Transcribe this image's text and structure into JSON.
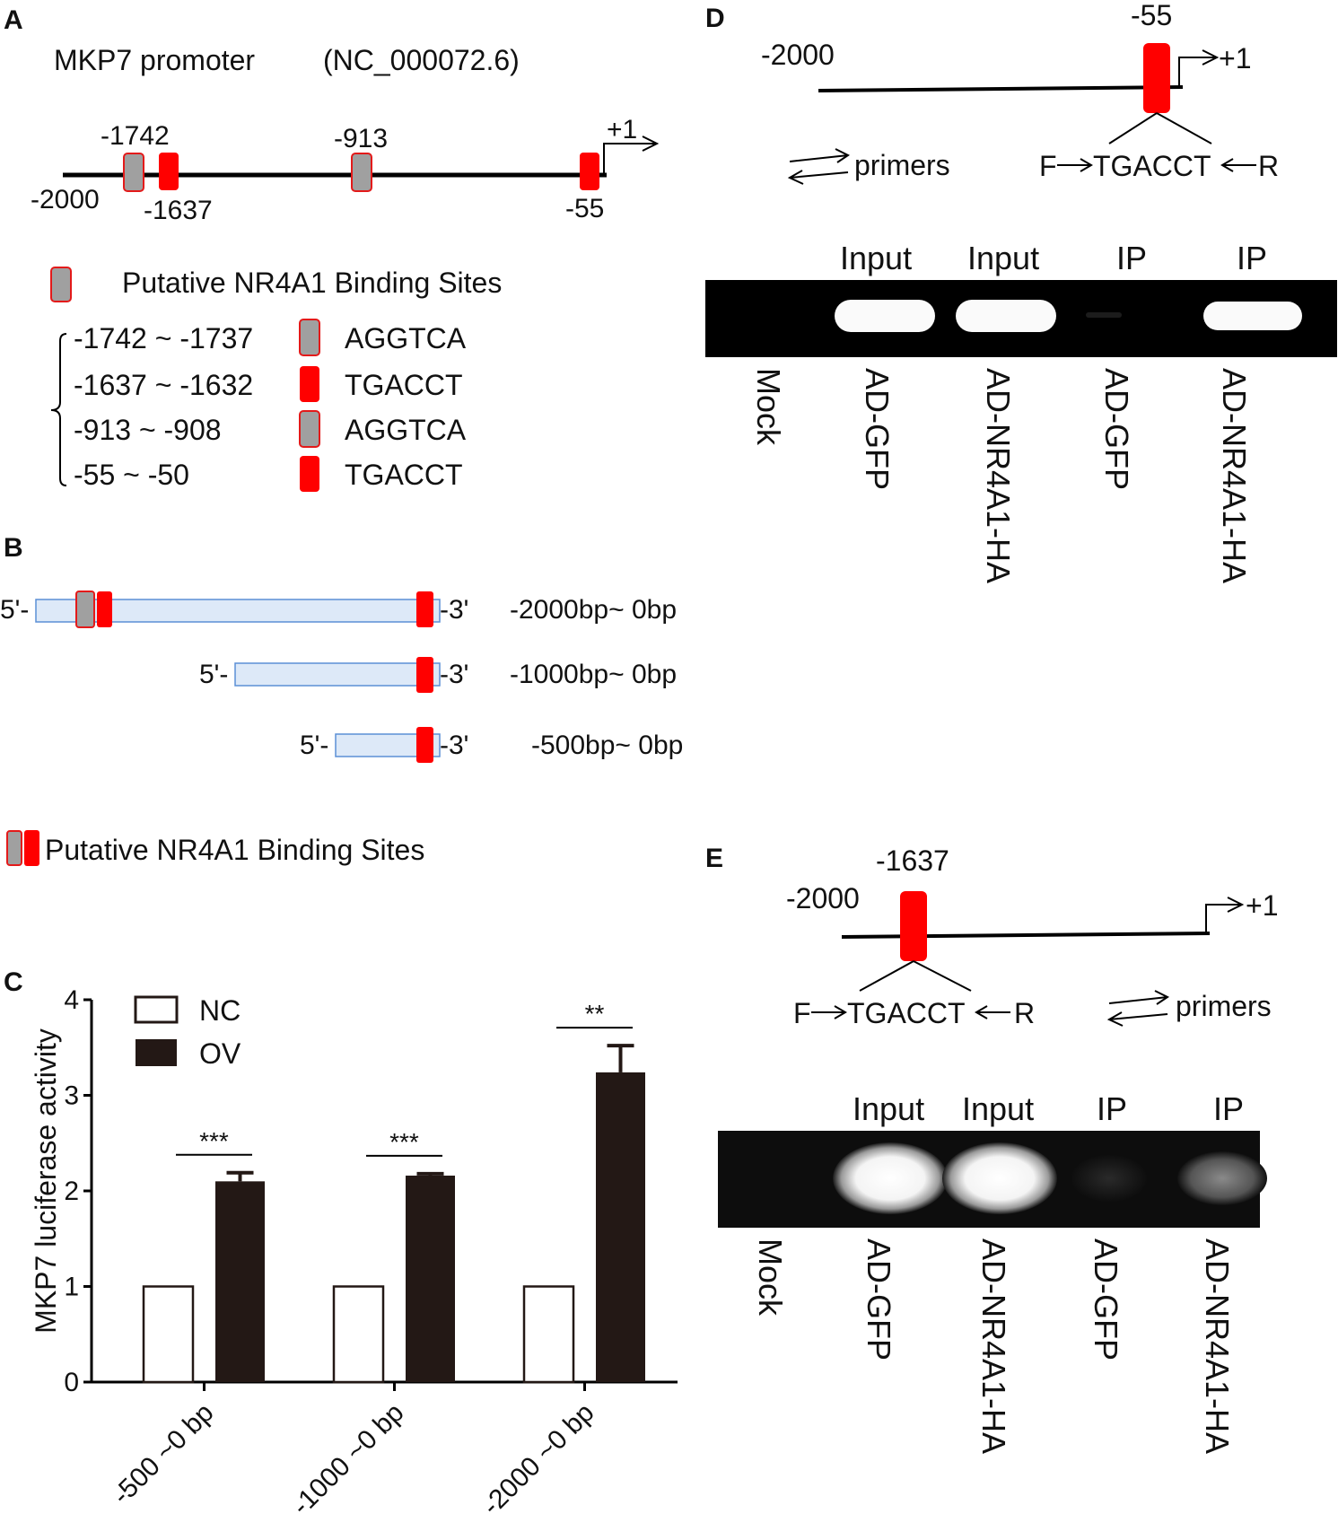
{
  "panelA": {
    "label": "A",
    "title": "MKP7 promoter",
    "accession": "(NC_000072.6)",
    "pos_1742": "-1742",
    "pos_1637": "-1637",
    "pos_913": "-913",
    "pos_55": "-55",
    "pos_2000": "-2000",
    "tss": "+1",
    "legend_text": "Putative NR4A1 Binding Sites",
    "sites": [
      {
        "range": "-1742 ~ -1737",
        "seq": "AGGTCA",
        "color": "#a0a0a0"
      },
      {
        "range": "-1637 ~ -1632",
        "seq": "TGACCT",
        "color": "#ff0000"
      },
      {
        "range": "-913 ~ -908",
        "seq": "AGGTCA",
        "color": "#a0a0a0"
      },
      {
        "range": "-55 ~ -50",
        "seq": "TGACCT",
        "color": "#ff0000"
      }
    ]
  },
  "panelB": {
    "label": "B",
    "constructs": [
      {
        "five": "5'-",
        "three": "-3'",
        "range": "-2000bp~ 0bp"
      },
      {
        "five": "5'-",
        "three": "-3'",
        "range": "-1000bp~ 0bp"
      },
      {
        "five": "5'-",
        "three": "-3'",
        "range": "-500bp~ 0bp"
      }
    ],
    "legend_text": "Putative NR4A1 Binding Sites"
  },
  "panelC": {
    "label": "C",
    "chart_data": {
      "type": "bar",
      "ylabel": "MKP7 luciferase  activity",
      "ylim": [
        0,
        4
      ],
      "yticks": [
        "0",
        "1",
        "2",
        "3",
        "4"
      ],
      "categories": [
        "-500 ~0 bp",
        "-1000 ~0 bp",
        "-2000 ~0 bp"
      ],
      "series": [
        {
          "name": "NC",
          "values": [
            1.0,
            1.0,
            1.0
          ],
          "errors": [
            0,
            0,
            0
          ],
          "color": "#ffffff"
        },
        {
          "name": "OV",
          "values": [
            2.1,
            2.16,
            3.24
          ],
          "errors": [
            0.09,
            0.02,
            0.28
          ],
          "color": "#231815"
        }
      ],
      "significance": [
        "***",
        "***",
        "**"
      ],
      "legend": "top-left"
    }
  },
  "panelD": {
    "label": "D",
    "pos_site": "-55",
    "pos_start": "-2000",
    "tss": "+1",
    "primers": "primers",
    "f": "F",
    "seq": "TGACCT",
    "r": "R",
    "gel_headers": [
      "Input",
      "Input",
      "IP",
      "IP"
    ],
    "lanes": [
      "Mock",
      "AD-GFP",
      "AD-NR4A1-HA",
      "AD-GFP",
      "AD-NR4A1-HA"
    ]
  },
  "panelE": {
    "label": "E",
    "pos_site": "-1637",
    "pos_start": "-2000",
    "tss": "+1",
    "primers": "primers",
    "f": "F",
    "seq": "TGACCT",
    "r": "R",
    "gel_headers": [
      "Input",
      "Input",
      "IP",
      "IP"
    ],
    "lanes": [
      "Mock",
      "AD-GFP",
      "AD-NR4A1-HA",
      "AD-GFP",
      "AD-NR4A1-HA"
    ]
  }
}
